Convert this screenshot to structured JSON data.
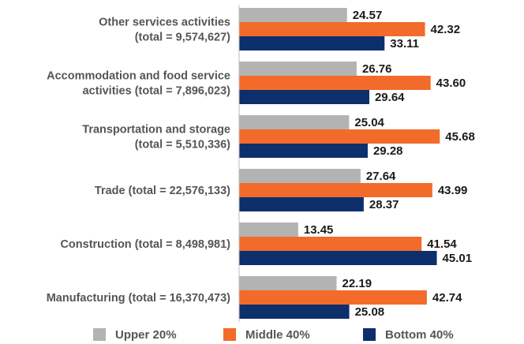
{
  "chart_data": {
    "type": "bar",
    "orientation": "horizontal",
    "categories": [
      [
        "Other services activities",
        "(total = 9,574,627)"
      ],
      [
        "Accommodation and food service",
        "activities (total = 7,896,023)"
      ],
      [
        "Transportation and storage",
        "(total = 5,510,336)"
      ],
      [
        "Trade (total = 22,576,133)"
      ],
      [
        "Construction (total = 8,498,981)"
      ],
      [
        "Manufacturing (total = 16,370,473)"
      ]
    ],
    "series": [
      {
        "name": "Upper 20%",
        "color": "#b3b3b3",
        "values": [
          24.57,
          26.76,
          25.04,
          27.64,
          13.45,
          22.19
        ]
      },
      {
        "name": "Middle 40%",
        "color": "#f26b2a",
        "values": [
          42.32,
          43.6,
          45.68,
          43.99,
          41.54,
          42.74
        ]
      },
      {
        "name": "Bottom 40%",
        "color": "#0d2f6b",
        "values": [
          33.11,
          29.64,
          29.28,
          28.37,
          45.01,
          25.08
        ]
      }
    ],
    "value_labels": [
      [
        "24.57",
        "42.32",
        "33.11"
      ],
      [
        "26.76",
        "43.60",
        "29.64"
      ],
      [
        "25.04",
        "45.68",
        "29.28"
      ],
      [
        "27.64",
        "43.99",
        "28.37"
      ],
      [
        "13.45",
        "41.54",
        "45.01"
      ],
      [
        "22.19",
        "42.74",
        "25.08"
      ]
    ],
    "xlim": [
      0,
      46
    ],
    "grid": false,
    "legend_position": "bottom"
  }
}
